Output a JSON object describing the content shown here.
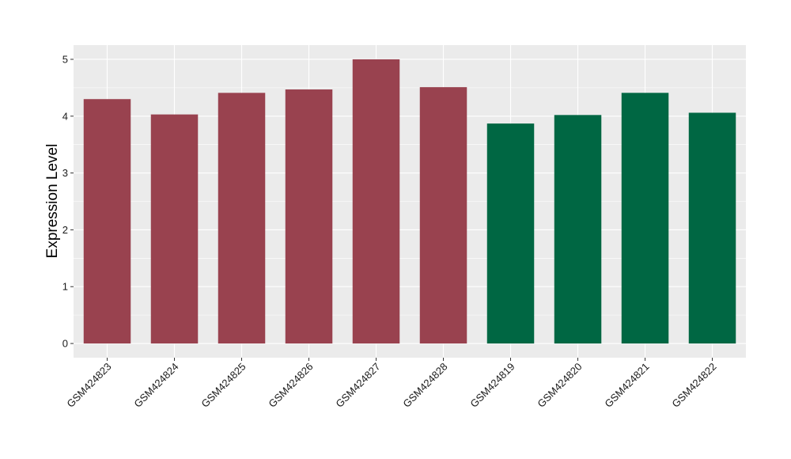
{
  "chart_data": {
    "type": "bar",
    "title": "",
    "xlabel": "",
    "ylabel": "Expression Level",
    "ylim": [
      -0.25,
      5.25
    ],
    "yticks": [
      0,
      1,
      2,
      3,
      4,
      5
    ],
    "grid": true,
    "legend": "none",
    "colors": {
      "panel": "#EBEBEB",
      "grid": "#FFFFFF",
      "group_a": "#99424F",
      "group_b": "#006743"
    },
    "categories": [
      "GSM424823",
      "GSM424824",
      "GSM424825",
      "GSM424826",
      "GSM424827",
      "GSM424828",
      "GSM424819",
      "GSM424820",
      "GSM424821",
      "GSM424822"
    ],
    "values": [
      4.3,
      4.03,
      4.41,
      4.47,
      5.0,
      4.51,
      3.87,
      4.02,
      4.41,
      4.06
    ],
    "bar_groups": [
      "a",
      "a",
      "a",
      "a",
      "a",
      "a",
      "b",
      "b",
      "b",
      "b"
    ]
  }
}
